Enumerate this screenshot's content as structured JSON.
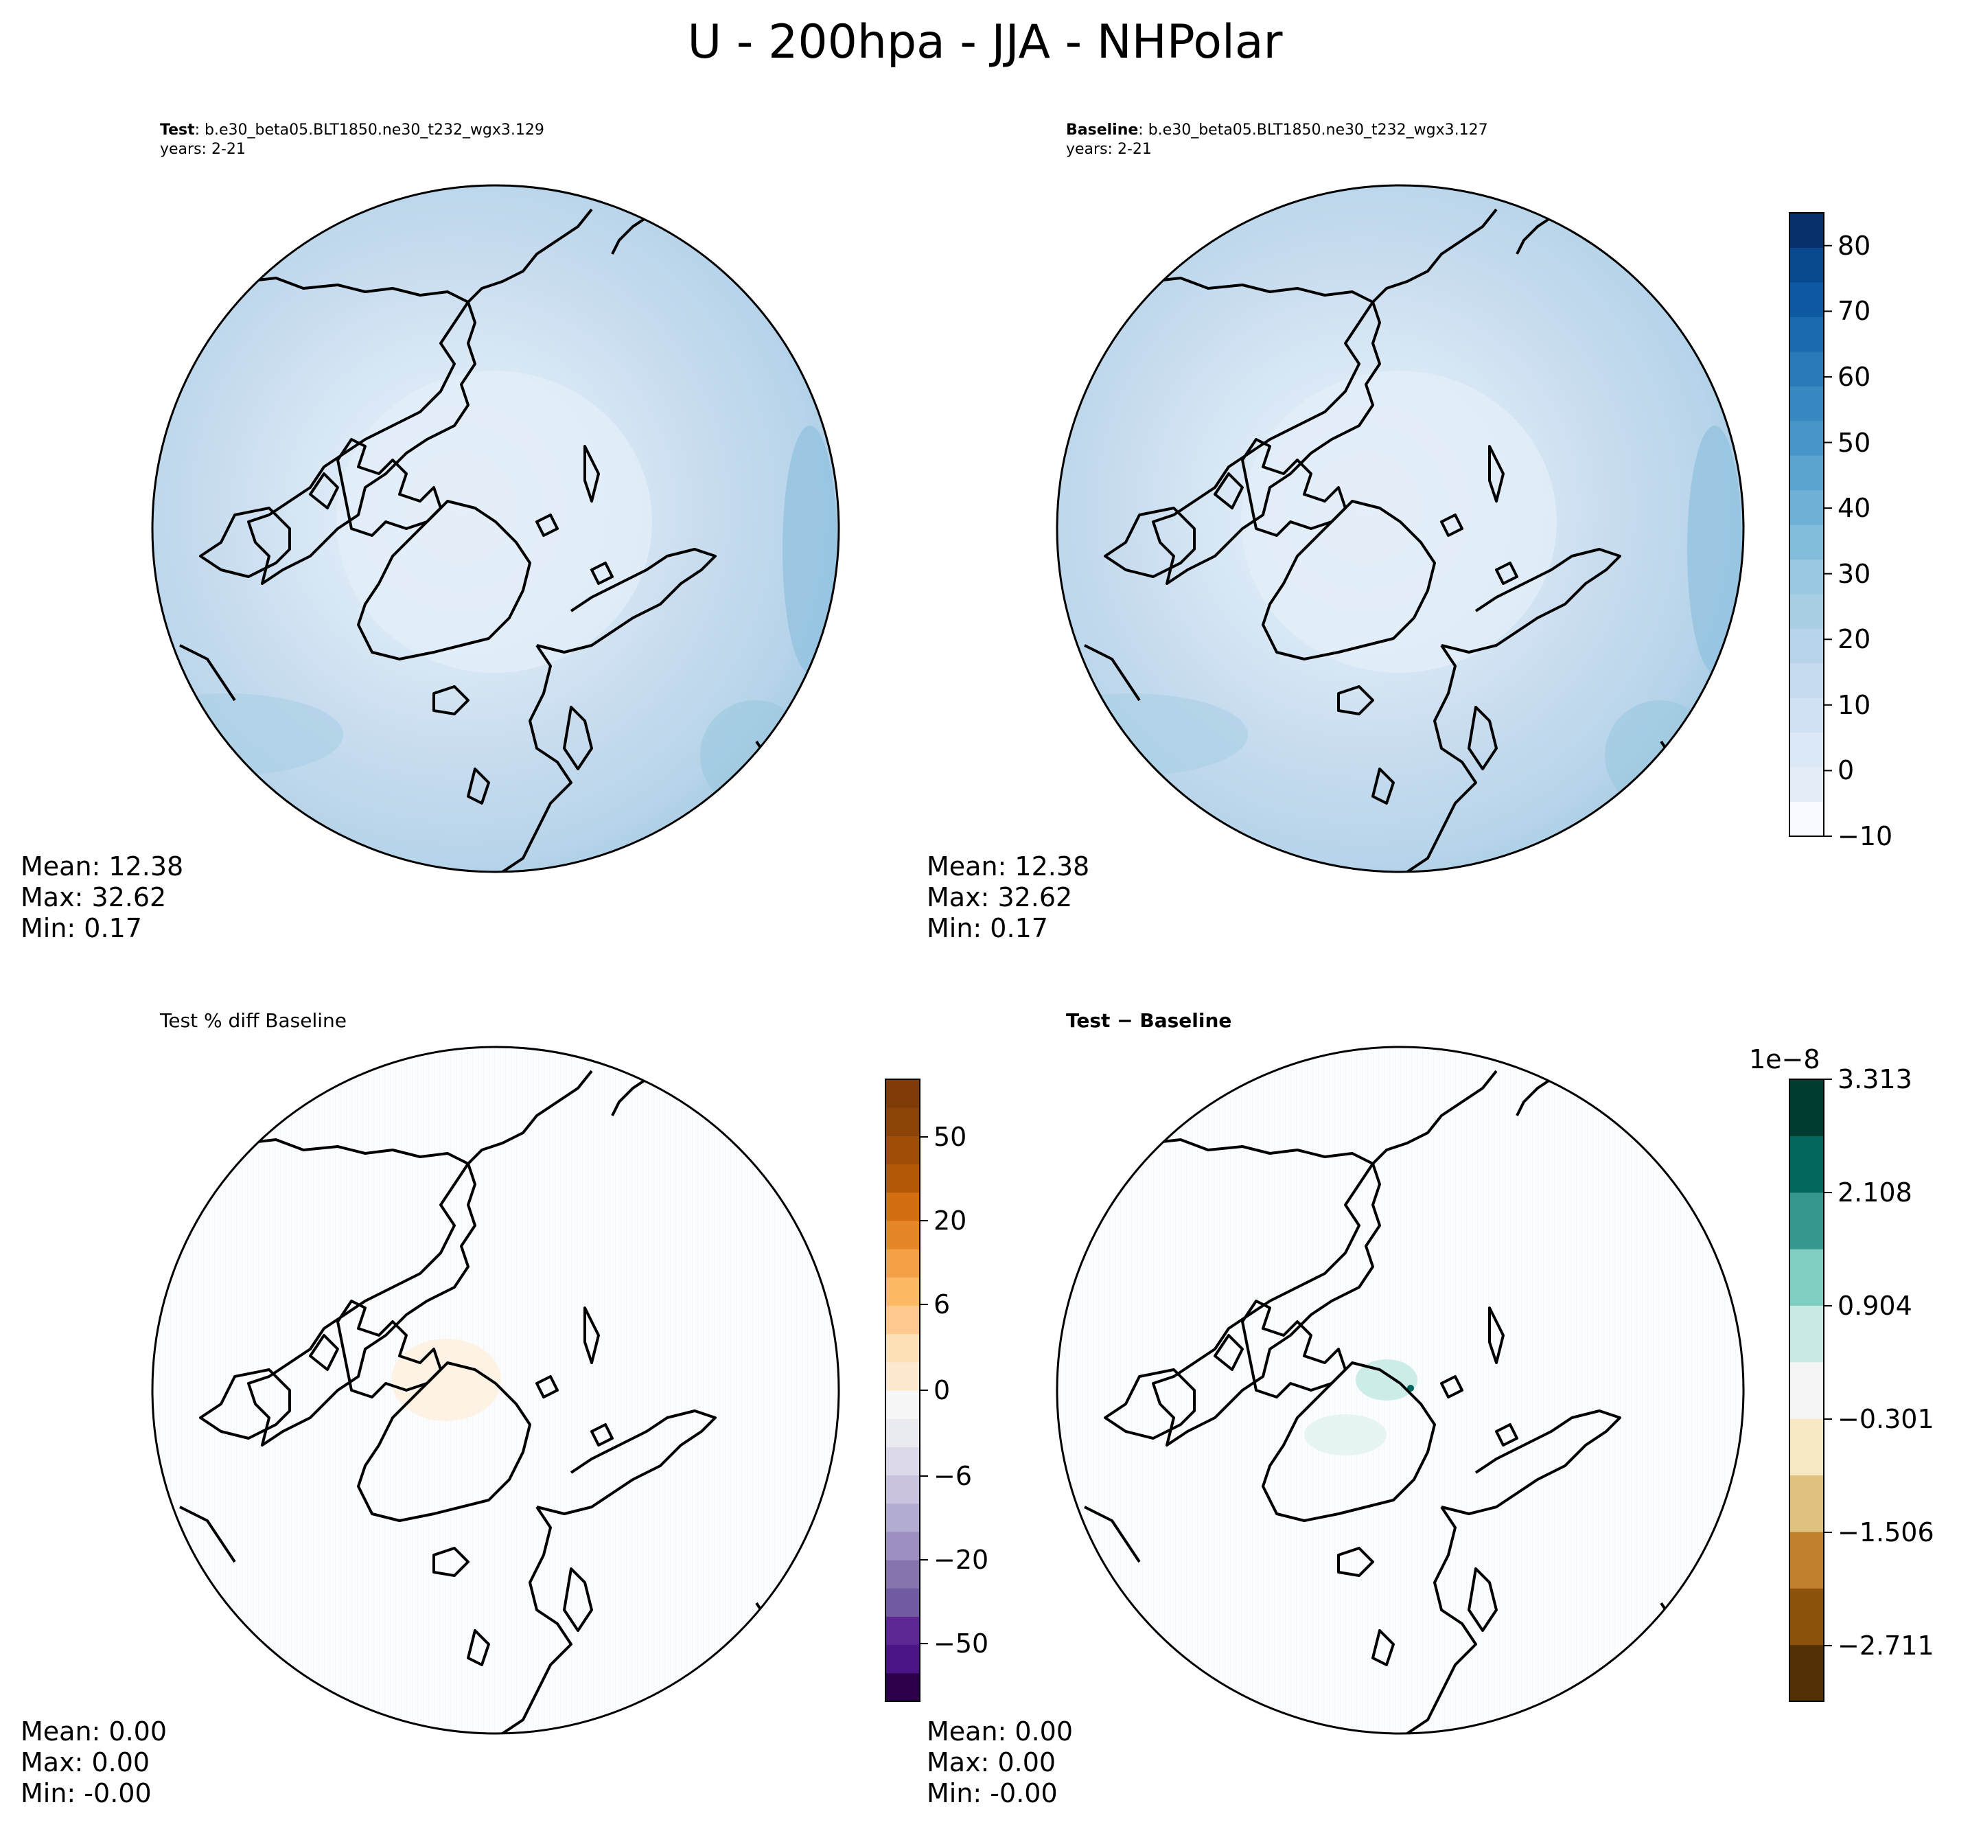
{
  "title": "U - 200hpa - JJA - NHPolar",
  "panels": [
    {
      "id": "test",
      "title_bold": "Test",
      "title_rest": ": b.e30_beta05.BLT1850.ne30_t232_wgx3.129",
      "subtitle": "years: 2-21",
      "stats": {
        "mean": "Mean: 12.38",
        "max": "Max: 32.62",
        "min": "Min:  0.17"
      }
    },
    {
      "id": "baseline",
      "title_bold": "Baseline",
      "title_rest": ": b.e30_beta05.BLT1850.ne30_t232_wgx3.127",
      "subtitle": "years: 2-21",
      "stats": {
        "mean": "Mean: 12.38",
        "max": "Max: 32.62",
        "min": "Min:  0.17"
      }
    },
    {
      "id": "pctdiff",
      "title_plain": "Test % diff Baseline",
      "stats": {
        "mean": "Mean:  0.00",
        "max": "Max:  0.00",
        "min": "Min: -0.00"
      }
    },
    {
      "id": "diff",
      "title_bold": "Test − Baseline",
      "stats": {
        "mean": "Mean:  0.00",
        "max": "Max:  0.00",
        "min": "Min: -0.00"
      }
    }
  ],
  "colorbars": {
    "main": {
      "ticks": [
        "80",
        "70",
        "60",
        "50",
        "40",
        "30",
        "20",
        "10",
        "0",
        "−10"
      ],
      "tick_values": [
        80,
        70,
        60,
        50,
        40,
        30,
        20,
        10,
        0,
        -10
      ],
      "range": [
        -10,
        85
      ],
      "colors": [
        "#f7fbff",
        "#e3eef9",
        "#dbe9f6",
        "#cfe1f2",
        "#c6dbef",
        "#b7d4ea",
        "#a8cee4",
        "#9ac8e0",
        "#84bcdb",
        "#6fb0d7",
        "#5ba3d0",
        "#4896c8",
        "#3888c1",
        "#2979b9",
        "#1b6aaf",
        "#0e59a2",
        "#084990",
        "#08306b"
      ]
    },
    "pct": {
      "ticks": [
        "50",
        "20",
        "6",
        "0",
        "−6",
        "−20",
        "−50"
      ],
      "colors": [
        "#2d004b",
        "#4a1486",
        "#5c2795",
        "#705aa0",
        "#8674ae",
        "#9d8fc1",
        "#b2abd2",
        "#c9c3e0",
        "#dcd9ea",
        "#eaeaf1",
        "#f7f7f7",
        "#fde9cf",
        "#fee0b6",
        "#fdc98c",
        "#fdb863",
        "#f3a046",
        "#e58628",
        "#d36e12",
        "#b35806",
        "#a04d07",
        "#8c4308",
        "#7f3b08"
      ]
    },
    "diff": {
      "multiplier": "1e−8",
      "ticks": [
        "3.313",
        "2.108",
        "0.904",
        "−0.301",
        "−1.506",
        "−2.711"
      ],
      "colors": [
        "#543005",
        "#8c510a",
        "#bf812d",
        "#dfc27d",
        "#f6e8c3",
        "#f5f5f5",
        "#c7eae5",
        "#80cdc1",
        "#35978f",
        "#01665e",
        "#003c30"
      ]
    }
  }
}
